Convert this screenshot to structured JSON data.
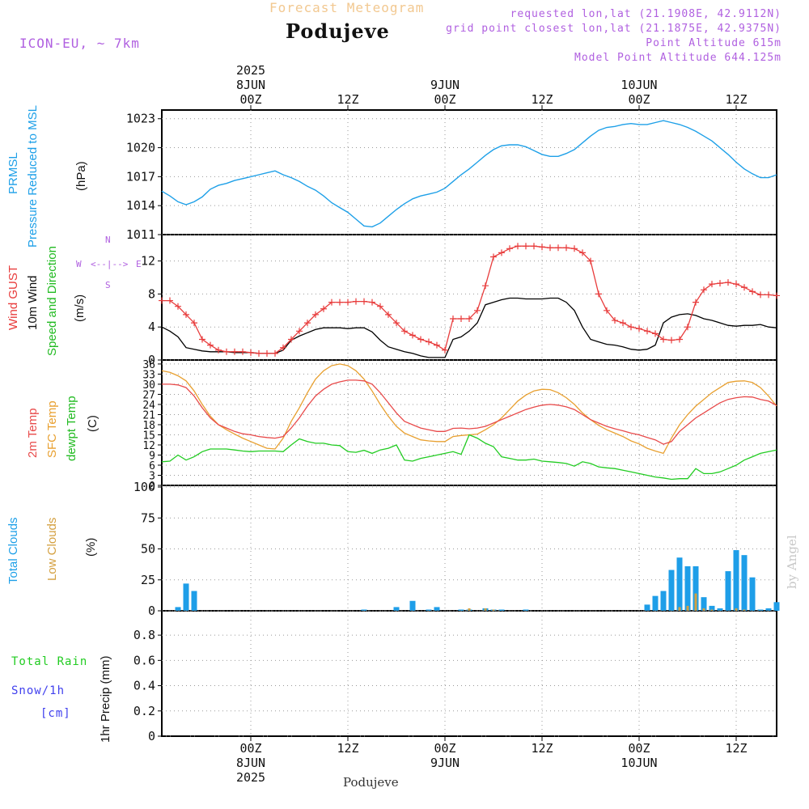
{
  "header": {
    "subtitle": "Forecast Meteogram",
    "location": "Podujeve",
    "model": "ICON-EU, ~ 7km",
    "info_lines": [
      "requested lon,lat (21.1908E, 42.9112N)",
      "grid point closest lon,lat (21.1875E, 42.9375N)",
      "Point Altitude 615m",
      "Model Point Altitude 644.125m"
    ],
    "footer_location": "Podujeve",
    "watermark": "by Angel"
  },
  "time_axis": {
    "top_year": "2025",
    "bottom_year": "2025",
    "ticks": [
      {
        "hour": 0,
        "top": "00Z",
        "date": "8JUN",
        "bottom": "00Z"
      },
      {
        "hour": 12,
        "top": "12Z",
        "date": "",
        "bottom": "12Z"
      },
      {
        "hour": 24,
        "top": "00Z",
        "date": "9JUN",
        "bottom": "00Z"
      },
      {
        "hour": 36,
        "top": "12Z",
        "date": "",
        "bottom": "12Z"
      },
      {
        "hour": 48,
        "top": "00Z",
        "date": "10JUN",
        "bottom": "00Z"
      },
      {
        "hour": 60,
        "top": "12Z",
        "date": "",
        "bottom": "12Z"
      }
    ],
    "start_hour": -11,
    "end_hour": 65
  },
  "panel_labels": {
    "pressure": {
      "name": "PRMSL",
      "desc": "Pressure Reduced to MSL",
      "unit": "(hPa)"
    },
    "wind": {
      "gust": "Wind GUST",
      "wind": "10m Wind",
      "dir": "Speed and Direction",
      "unit": "(m/s)",
      "compass": {
        "n": "N",
        "s": "S",
        "e": "E",
        "w": "W"
      }
    },
    "temp": {
      "t2m": "2m Temp",
      "sfc": "SFC Temp",
      "dew": "dewpt Temp",
      "unit": "(C)"
    },
    "clouds": {
      "total": "Total Clouds",
      "low": "Low Clouds",
      "unit": "(%)"
    },
    "precip": {
      "rain": "Total  Rain",
      "snow": "Snow/1h",
      "snow_unit": "[cm]",
      "axis": "1hr Precip (mm)"
    }
  },
  "colors": {
    "pressure": "#1ea0e8",
    "gust": "#e83c3c",
    "wind": "#000000",
    "t2m": "#e84a4a",
    "sfc": "#e8a030",
    "dew": "#22cc22",
    "total_clouds": "#1e9ee8",
    "low_clouds": "#d4a040",
    "rain": "#22cc22",
    "snow": "#4040ee",
    "purple": "#b060e0"
  },
  "chart_data": [
    {
      "type": "line",
      "name": "pressure",
      "ylim": [
        1011,
        1024
      ],
      "yticks": [
        "1011",
        "1014",
        "1017",
        "1020",
        "1023"
      ],
      "x": [
        -11,
        -10,
        -9,
        -8,
        -7,
        -6,
        -5,
        -4,
        -3,
        -2,
        -1,
        0,
        1,
        2,
        3,
        4,
        5,
        6,
        7,
        8,
        9,
        10,
        11,
        12,
        13,
        14,
        15,
        16,
        17,
        18,
        19,
        20,
        21,
        22,
        23,
        24,
        25,
        26,
        27,
        28,
        29,
        30,
        31,
        32,
        33,
        34,
        35,
        36,
        37,
        38,
        39,
        40,
        41,
        42,
        43,
        44,
        45,
        46,
        47,
        48,
        49,
        50,
        51,
        52,
        53,
        54,
        55,
        56,
        57,
        58,
        59,
        60,
        61,
        62,
        63,
        64,
        65
      ],
      "series": [
        {
          "values": [
            1015.5,
            1015,
            1014.4,
            1014.1,
            1014.4,
            1014.9,
            1015.7,
            1016.1,
            1016.3,
            1016.6,
            1016.8,
            1017.0,
            1017.2,
            1017.4,
            1017.6,
            1017.2,
            1016.9,
            1016.5,
            1016.0,
            1015.6,
            1015.0,
            1014.3,
            1013.8,
            1013.3,
            1012.6,
            1011.9,
            1011.8,
            1012.2,
            1012.9,
            1013.6,
            1014.2,
            1014.7,
            1015.0,
            1015.2,
            1015.4,
            1015.8,
            1016.5,
            1017.2,
            1017.8,
            1018.5,
            1019.2,
            1019.8,
            1020.2,
            1020.3,
            1020.3,
            1020.1,
            1019.7,
            1019.3,
            1019.1,
            1019.1,
            1019.4,
            1019.8,
            1020.5,
            1021.2,
            1021.8,
            1022.1,
            1022.2,
            1022.4,
            1022.5,
            1022.4,
            1022.4,
            1022.6,
            1022.8,
            1022.6,
            1022.4,
            1022.1,
            1021.7,
            1021.2,
            1020.7,
            1020.0,
            1019.3,
            1018.5,
            1017.8,
            1017.3,
            1016.9,
            1016.9,
            1017.2
          ]
        }
      ]
    },
    {
      "type": "line",
      "name": "wind",
      "ylim": [
        0,
        15
      ],
      "yticks": [
        "0",
        "4",
        "8",
        "12"
      ],
      "x": [
        -11,
        -10,
        -9,
        -8,
        -7,
        -6,
        -5,
        -4,
        -3,
        -2,
        -1,
        0,
        1,
        2,
        3,
        4,
        5,
        6,
        7,
        8,
        9,
        10,
        11,
        12,
        13,
        14,
        15,
        16,
        17,
        18,
        19,
        20,
        21,
        22,
        23,
        24,
        25,
        26,
        27,
        28,
        29,
        30,
        31,
        32,
        33,
        34,
        35,
        36,
        37,
        38,
        39,
        40,
        41,
        42,
        43,
        44,
        45,
        46,
        47,
        48,
        49,
        50,
        51,
        52,
        53,
        54,
        55,
        56,
        57,
        58,
        59,
        60,
        61,
        62,
        63,
        64,
        65
      ],
      "series": [
        {
          "name": "Wind GUST",
          "values": [
            7.2,
            7.2,
            6.5,
            5.5,
            4.5,
            2.5,
            1.8,
            1.2,
            1.0,
            1.0,
            1.0,
            0.9,
            0.8,
            0.8,
            0.8,
            1.5,
            2.5,
            3.5,
            4.5,
            5.5,
            6.2,
            7.0,
            7.0,
            7.0,
            7.1,
            7.1,
            7.0,
            6.5,
            5.5,
            4.5,
            3.5,
            3.0,
            2.5,
            2.2,
            1.8,
            1.2,
            5.0,
            5.0,
            5.0,
            6.0,
            9.0,
            12.5,
            13.0,
            13.5,
            13.8,
            13.8,
            13.8,
            13.7,
            13.6,
            13.6,
            13.6,
            13.5,
            13.0,
            12.0,
            8.0,
            6.0,
            4.8,
            4.5,
            4.0,
            3.8,
            3.5,
            3.2,
            2.5,
            2.4,
            2.5,
            4.0,
            7.0,
            8.5,
            9.2,
            9.3,
            9.4,
            9.2,
            8.8,
            8.3,
            7.9,
            7.9,
            7.8
          ]
        },
        {
          "name": "10m Wind",
          "values": [
            4.0,
            3.5,
            2.8,
            1.5,
            1.3,
            1.1,
            1.0,
            1.0,
            1.0,
            0.9,
            0.9,
            0.9,
            0.8,
            0.8,
            0.8,
            1.2,
            2.4,
            2.9,
            3.3,
            3.7,
            3.9,
            3.9,
            3.9,
            3.8,
            3.9,
            3.9,
            3.4,
            2.4,
            1.6,
            1.3,
            1.0,
            0.8,
            0.5,
            0.3,
            0.3,
            0.3,
            2.5,
            2.8,
            3.5,
            4.5,
            6.7,
            7.0,
            7.3,
            7.5,
            7.5,
            7.4,
            7.4,
            7.4,
            7.5,
            7.5,
            7.0,
            6.0,
            4.0,
            2.5,
            2.2,
            1.9,
            1.8,
            1.6,
            1.3,
            1.2,
            1.3,
            1.8,
            4.5,
            5.2,
            5.5,
            5.6,
            5.4,
            5.0,
            4.8,
            4.5,
            4.2,
            4.1,
            4.2,
            4.2,
            4.3,
            4.0,
            3.9
          ]
        }
      ]
    },
    {
      "type": "line",
      "name": "temperature",
      "ylim": [
        0,
        36
      ],
      "yticks": [
        "0",
        "3",
        "6",
        "9",
        "12",
        "15",
        "18",
        "21",
        "24",
        "27",
        "30",
        "33",
        "36"
      ],
      "x": [
        -11,
        -10,
        -9,
        -8,
        -7,
        -6,
        -5,
        -4,
        -3,
        -2,
        -1,
        0,
        1,
        2,
        3,
        4,
        5,
        6,
        7,
        8,
        9,
        10,
        11,
        12,
        13,
        14,
        15,
        16,
        17,
        18,
        19,
        20,
        21,
        22,
        23,
        24,
        25,
        26,
        27,
        28,
        29,
        30,
        31,
        32,
        33,
        34,
        35,
        36,
        37,
        38,
        39,
        40,
        41,
        42,
        43,
        44,
        45,
        46,
        47,
        48,
        49,
        50,
        51,
        52,
        53,
        54,
        55,
        56,
        57,
        58,
        59,
        60,
        61,
        62,
        63,
        64,
        65
      ],
      "series": [
        {
          "name": "2m Temp",
          "values": [
            30.0,
            30.0,
            29.8,
            29.0,
            26.5,
            23.0,
            20.0,
            18.0,
            17.0,
            16.0,
            15.3,
            15.0,
            14.5,
            14.2,
            14.0,
            14.5,
            17.0,
            20.0,
            23.5,
            26.5,
            28.5,
            30.0,
            30.7,
            31.2,
            31.2,
            31.0,
            30.0,
            27.5,
            24.5,
            21.5,
            19.0,
            18.0,
            17.0,
            16.5,
            16.0,
            16.0,
            16.9,
            17.0,
            16.8,
            17.0,
            17.5,
            18.5,
            19.5,
            20.5,
            21.5,
            22.5,
            23.2,
            23.8,
            24.0,
            23.8,
            23.3,
            22.5,
            21.0,
            19.5,
            18.5,
            17.5,
            16.8,
            16.2,
            15.5,
            15.0,
            14.2,
            13.5,
            12.2,
            13.0,
            16.0,
            18.0,
            20.0,
            21.5,
            23.0,
            24.5,
            25.5,
            26.0,
            26.3,
            26.2,
            25.5,
            25.0,
            23.7
          ]
        },
        {
          "name": "SFC Temp",
          "values": [
            34.0,
            33.5,
            32.5,
            31.0,
            28.0,
            24.0,
            20.5,
            18.0,
            16.5,
            15.2,
            14.0,
            13.0,
            12.0,
            11.0,
            10.8,
            14.0,
            19.0,
            23.0,
            27.5,
            31.5,
            34.0,
            35.5,
            36.0,
            35.5,
            34.0,
            31.5,
            28.0,
            24.0,
            20.5,
            17.5,
            15.5,
            14.5,
            13.5,
            13.2,
            13.0,
            13.0,
            14.5,
            14.8,
            15.0,
            15.2,
            16.5,
            18.0,
            20.0,
            22.5,
            25.0,
            26.8,
            28.0,
            28.5,
            28.4,
            27.5,
            26.0,
            24.0,
            21.5,
            19.5,
            17.8,
            16.5,
            15.5,
            14.5,
            13.2,
            12.3,
            11.0,
            10.2,
            9.5,
            14.0,
            18.0,
            21.0,
            23.5,
            25.5,
            27.5,
            29.0,
            30.5,
            30.9,
            31.0,
            30.5,
            29.0,
            26.5,
            23.5
          ]
        },
        {
          "name": "dewpt Temp",
          "values": [
            7.0,
            7.2,
            9.0,
            7.5,
            8.5,
            10.0,
            10.8,
            10.8,
            10.8,
            10.5,
            10.2,
            10.0,
            10.2,
            10.2,
            10.2,
            10.0,
            12.0,
            13.8,
            13.0,
            12.5,
            12.5,
            12.0,
            11.8,
            10.0,
            9.8,
            10.4,
            9.5,
            10.5,
            11.0,
            12.0,
            7.5,
            7.2,
            8.0,
            8.5,
            9.0,
            9.5,
            10.0,
            9.2,
            15.0,
            14.0,
            12.5,
            11.5,
            8.5,
            8.0,
            7.5,
            7.5,
            7.8,
            7.2,
            7.0,
            6.8,
            6.5,
            5.7,
            7.0,
            6.5,
            5.5,
            5.2,
            5.0,
            4.5,
            4.0,
            3.5,
            3.0,
            2.5,
            2.2,
            1.8,
            2.0,
            2.0,
            5.0,
            3.5,
            3.5,
            4.0,
            5.0,
            6.0,
            7.5,
            8.5,
            9.5,
            10.0,
            10.5
          ]
        }
      ]
    },
    {
      "type": "bar",
      "name": "clouds",
      "ylim": [
        0,
        100
      ],
      "yticks": [
        "0",
        "25",
        "50",
        "75",
        "100"
      ],
      "x": [
        -9,
        -8,
        -7,
        14,
        16,
        18,
        20,
        22,
        23,
        26,
        27,
        29,
        30,
        31,
        32,
        34,
        49,
        50,
        51,
        52,
        53,
        54,
        55,
        56,
        57,
        58,
        59,
        60,
        61,
        62,
        63,
        64,
        65
      ],
      "series": [
        {
          "name": "Total Clouds",
          "values": [
            3,
            22,
            16,
            1,
            0,
            3,
            8,
            1,
            3,
            1,
            1,
            2,
            1,
            1,
            0,
            1,
            5,
            12,
            16,
            33,
            43,
            36,
            36,
            11,
            4,
            2,
            32,
            49,
            45,
            27,
            1,
            2,
            7
          ]
        },
        {
          "name": "Low Clouds",
          "values": [
            0,
            0,
            0,
            0,
            0,
            0,
            0,
            0,
            0,
            0,
            2,
            2,
            1,
            0,
            0,
            0,
            0,
            0,
            0,
            0,
            3,
            4,
            14,
            2,
            1,
            0,
            0,
            2,
            1,
            0,
            0,
            0,
            0
          ]
        }
      ]
    },
    {
      "type": "bar",
      "name": "precipitation",
      "ylim": [
        0,
        0.98
      ],
      "yticks": [
        "0",
        "0.2",
        "0.4",
        "0.6",
        "0.8"
      ],
      "series": [
        {
          "name": "Total Rain",
          "values": []
        },
        {
          "name": "Snow/1h",
          "values": []
        }
      ]
    }
  ]
}
